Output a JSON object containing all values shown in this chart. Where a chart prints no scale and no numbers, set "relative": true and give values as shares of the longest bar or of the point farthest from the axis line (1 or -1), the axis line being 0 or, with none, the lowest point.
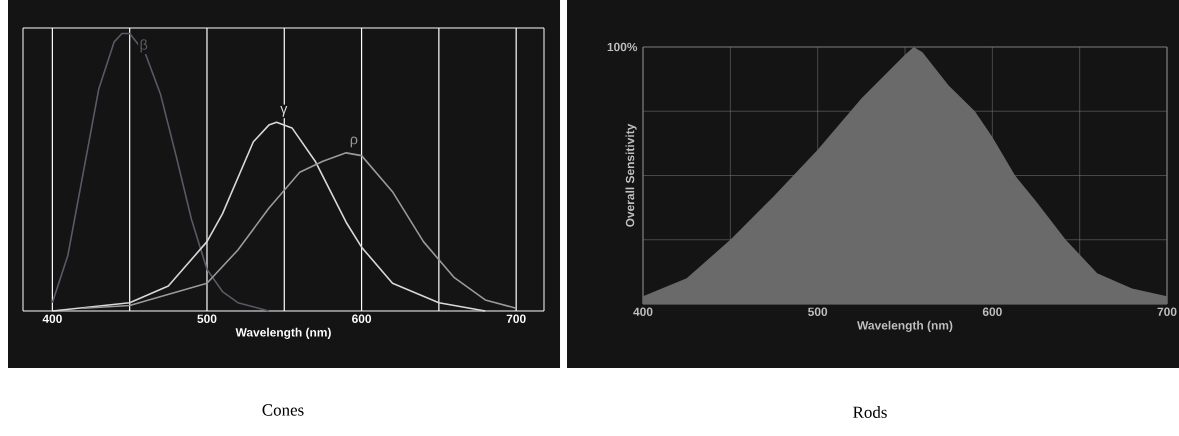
{
  "chart_data": [
    {
      "type": "line",
      "title": "Cones",
      "xlabel": "Wavelength (nm)",
      "relative": true,
      "grid": "x",
      "xlim": [
        381,
        718
      ],
      "xticks": [
        400,
        {
          "value": 450,
          "label": null
        },
        500,
        {
          "value": 550,
          "label": null
        },
        600,
        {
          "value": 650,
          "label": null
        },
        700
      ],
      "series": [
        {
          "name": "β",
          "color": "#5a5a66",
          "x": [
            400,
            410,
            420,
            430,
            440,
            445,
            450,
            460,
            470,
            480,
            490,
            500,
            510,
            520,
            540
          ],
          "values": [
            0.03,
            0.2,
            0.5,
            0.8,
            0.97,
            1.0,
            1.0,
            0.93,
            0.78,
            0.56,
            0.33,
            0.15,
            0.07,
            0.03,
            0.0
          ]
        },
        {
          "name": "γ",
          "color": "#d8d8d8",
          "x": [
            400,
            450,
            475,
            500,
            510,
            520,
            530,
            540,
            545,
            555,
            570,
            580,
            590,
            600,
            620,
            650,
            680
          ],
          "values": [
            0.0,
            0.03,
            0.09,
            0.25,
            0.35,
            0.48,
            0.61,
            0.67,
            0.68,
            0.66,
            0.54,
            0.43,
            0.32,
            0.23,
            0.1,
            0.03,
            0.0
          ]
        },
        {
          "name": "ρ",
          "color": "#9a9a9a",
          "x": [
            420,
            450,
            500,
            520,
            540,
            560,
            575,
            590,
            600,
            620,
            640,
            660,
            680,
            700
          ],
          "values": [
            0.01,
            0.02,
            0.1,
            0.22,
            0.37,
            0.5,
            0.54,
            0.57,
            0.56,
            0.43,
            0.25,
            0.12,
            0.04,
            0.01
          ]
        }
      ]
    },
    {
      "type": "area",
      "title": "Rods",
      "xlabel": "Wavelength (nm)",
      "ylabel": "Overall Sensitivity",
      "relative": true,
      "grid": true,
      "annotations": [
        "100%"
      ],
      "xlim": [
        400,
        700
      ],
      "xticks": [
        400,
        {
          "value": 450,
          "label": null
        },
        500,
        {
          "value": 550,
          "label": null
        },
        600,
        {
          "value": 650,
          "label": null
        },
        700
      ],
      "series": [
        {
          "color": "#6a6a6a",
          "x": [
            400,
            425,
            450,
            475,
            500,
            525,
            550,
            555,
            560,
            575,
            590,
            600,
            613,
            625,
            642,
            660,
            680,
            700
          ],
          "values": [
            0.03,
            0.1,
            0.25,
            0.42,
            0.6,
            0.8,
            0.97,
            1.0,
            0.98,
            0.85,
            0.75,
            0.65,
            0.5,
            0.4,
            0.25,
            0.12,
            0.06,
            0.03
          ]
        }
      ]
    }
  ]
}
